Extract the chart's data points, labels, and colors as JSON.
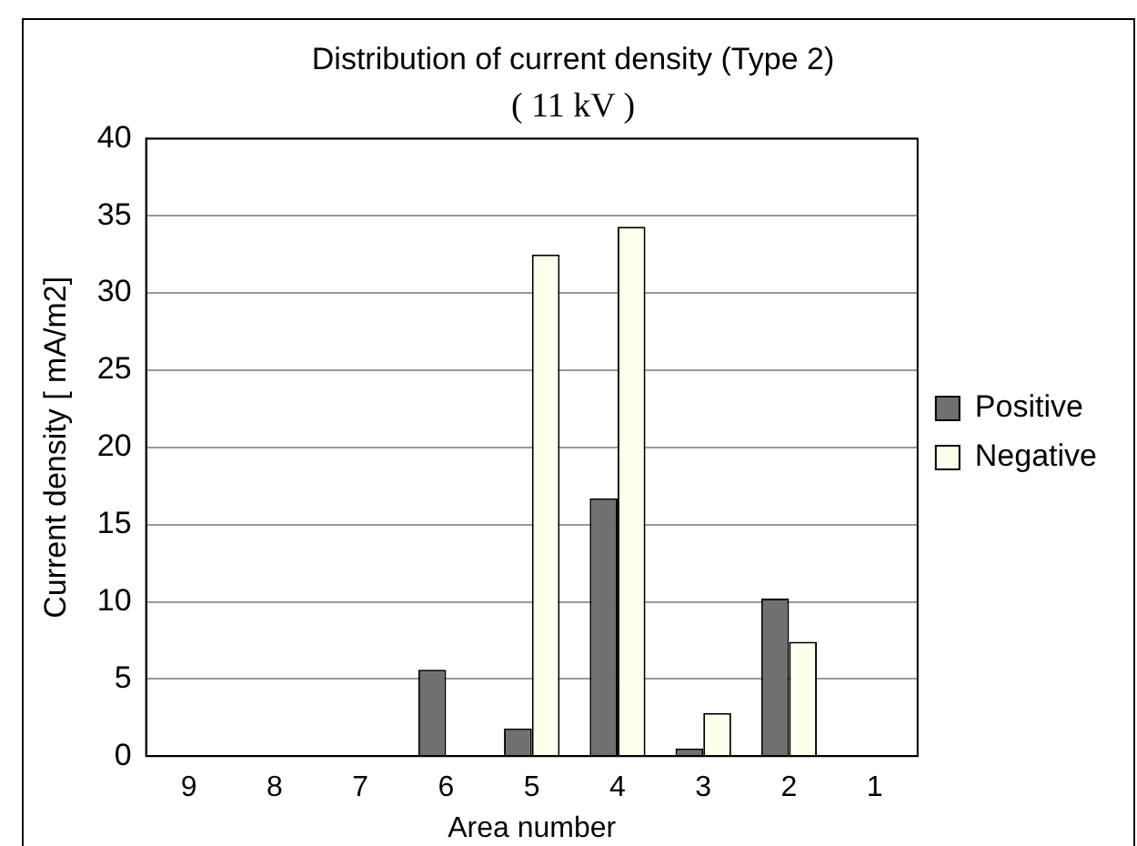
{
  "chart_data": {
    "type": "bar",
    "title": "Distribution of current density (Type 2)",
    "subtitle": "( 11 kV )",
    "xlabel": "Area number",
    "ylabel": "Current density [ mA/m2]",
    "categories": [
      "9",
      "8",
      "7",
      "6",
      "5",
      "4",
      "3",
      "2",
      "1"
    ],
    "series": [
      {
        "name": "Positive",
        "color": "#707070",
        "values": [
          0,
          0,
          0,
          5.6,
          1.8,
          16.7,
          0.5,
          10.2,
          0
        ]
      },
      {
        "name": "Negative",
        "color": "#ffffee",
        "values": [
          0,
          0,
          0,
          0,
          32.5,
          34.3,
          2.8,
          7.4,
          0
        ]
      }
    ],
    "ylim": [
      0,
      40
    ],
    "yticks": [
      0,
      5,
      10,
      15,
      20,
      25,
      30,
      35,
      40
    ],
    "grid": "y",
    "legend": "right"
  }
}
